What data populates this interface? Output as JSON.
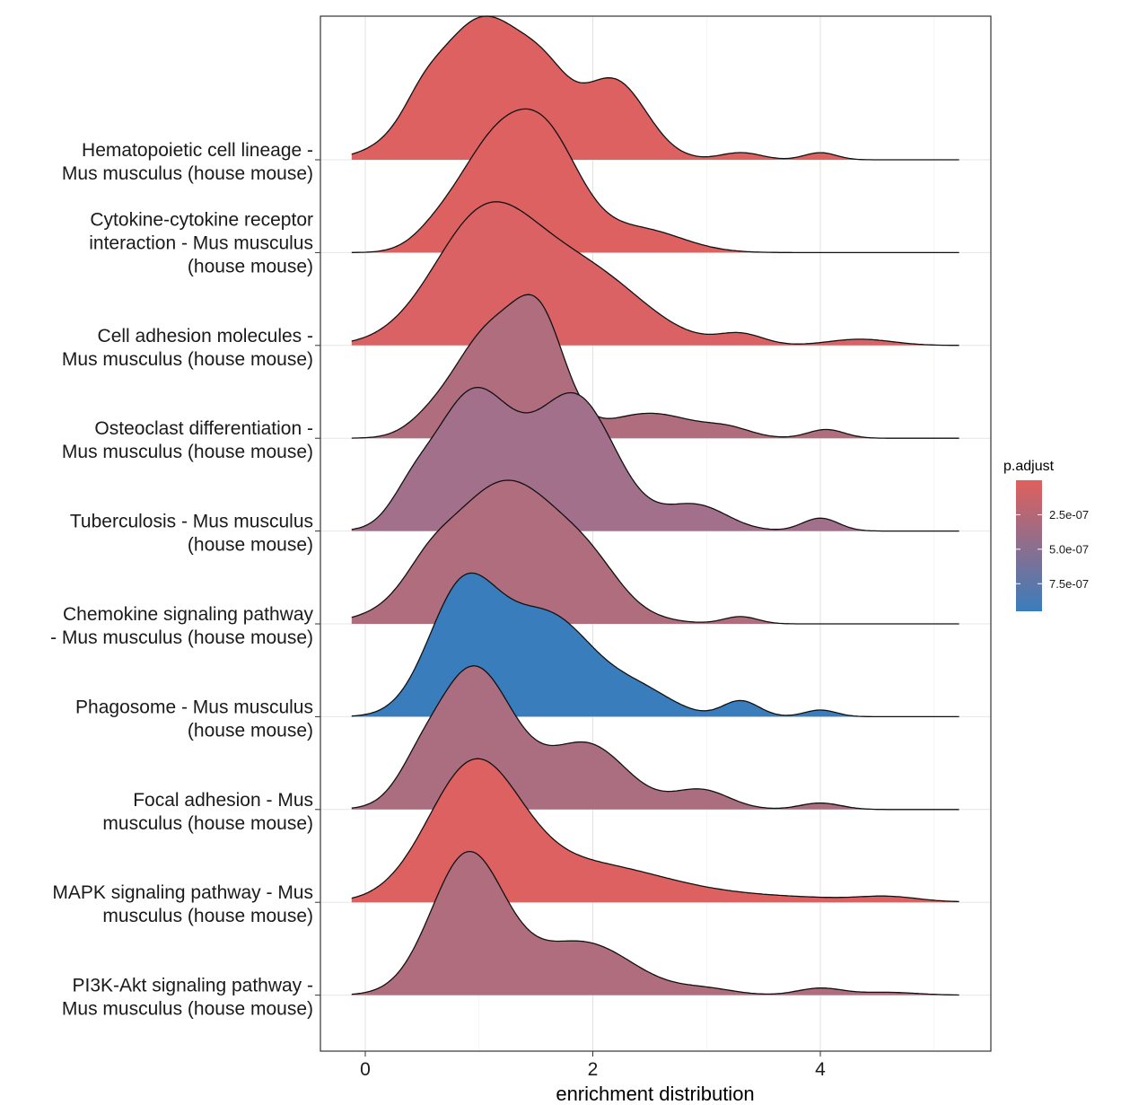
{
  "chart_data": {
    "type": "ridgeline",
    "xlabel": "enrichment distribution",
    "ylabel": "",
    "xlim": [
      -0.4,
      5.4
    ],
    "x_ticks": [
      {
        "value": 0,
        "label": "0"
      },
      {
        "value": 2,
        "label": "2"
      },
      {
        "value": 4,
        "label": "4"
      }
    ],
    "grid": true,
    "legend": {
      "title": "p.adjust",
      "placement": "right",
      "range": [
        0,
        9.5e-07
      ],
      "low_color": "#e0605d",
      "high_color": "#3a7dbd",
      "ticks": [
        {
          "value": 2.5e-07,
          "label": "2.5e-07"
        },
        {
          "value": 5e-07,
          "label": "5.0e-07"
        },
        {
          "value": 7.5e-07,
          "label": "7.5e-07"
        }
      ]
    },
    "density_domain": [
      -0.12,
      5.22
    ],
    "series": [
      {
        "label_lines": [
          "Hematopoietic cell lineage -",
          "Mus musculus (house mouse)"
        ],
        "color": "#dd6161",
        "peaks": [
          [
            1.05,
            0.46,
            1.0
          ],
          [
            2.2,
            0.28,
            0.52
          ],
          [
            1.6,
            0.2,
            0.2
          ],
          [
            3.3,
            0.18,
            0.05
          ],
          [
            4.0,
            0.14,
            0.05
          ],
          [
            0.5,
            0.16,
            0.1
          ]
        ]
      },
      {
        "label_lines": [
          "Cytokine-cytokine receptor",
          "interaction - Mus musculus",
          "(house mouse)"
        ],
        "color": "#dd6161",
        "peaks": [
          [
            1.1,
            0.32,
            0.9
          ],
          [
            1.6,
            0.3,
            0.95
          ],
          [
            2.4,
            0.38,
            0.22
          ],
          [
            0.6,
            0.2,
            0.1
          ]
        ]
      },
      {
        "label_lines": [
          "Cell adhesion molecules -",
          "Mus musculus (house mouse)"
        ],
        "color": "#db6264",
        "peaks": [
          [
            1.05,
            0.45,
            0.82
          ],
          [
            1.95,
            0.5,
            0.45
          ],
          [
            3.3,
            0.2,
            0.07
          ],
          [
            4.35,
            0.28,
            0.04
          ]
        ]
      },
      {
        "label_lines": [
          "Osteoclast differentiation -",
          "Mus musculus (house mouse)"
        ],
        "color": "#b06d7e",
        "peaks": [
          [
            1.1,
            0.32,
            0.85
          ],
          [
            1.55,
            0.22,
            0.75
          ],
          [
            2.5,
            0.4,
            0.2
          ],
          [
            3.2,
            0.2,
            0.06
          ],
          [
            4.05,
            0.16,
            0.07
          ],
          [
            0.55,
            0.2,
            0.08
          ]
        ]
      },
      {
        "label_lines": [
          "Tuberculosis - Mus musculus",
          "(house mouse)"
        ],
        "color": "#a3708b",
        "peaks": [
          [
            0.95,
            0.35,
            0.75
          ],
          [
            1.85,
            0.35,
            0.72
          ],
          [
            2.9,
            0.28,
            0.14
          ],
          [
            4.0,
            0.16,
            0.07
          ],
          [
            0.4,
            0.18,
            0.12
          ]
        ]
      },
      {
        "label_lines": [
          "Chemokine signaling pathway",
          "- Mus musculus (house mouse)"
        ],
        "color": "#b06d7e",
        "peaks": [
          [
            1.25,
            0.55,
            1.0
          ],
          [
            2.0,
            0.25,
            0.15
          ],
          [
            3.3,
            0.15,
            0.05
          ],
          [
            0.55,
            0.2,
            0.12
          ]
        ]
      },
      {
        "label_lines": [
          "Phagosome - Mus musculus",
          "(house mouse)"
        ],
        "color": "#3a7dbd",
        "peaks": [
          [
            0.85,
            0.3,
            0.9
          ],
          [
            1.6,
            0.42,
            0.76
          ],
          [
            2.45,
            0.28,
            0.15
          ],
          [
            3.3,
            0.16,
            0.12
          ],
          [
            4.0,
            0.14,
            0.05
          ]
        ]
      },
      {
        "label_lines": [
          "Focal adhesion - Mus",
          "musculus (house mouse)"
        ],
        "color": "#ab6d80",
        "peaks": [
          [
            0.95,
            0.35,
            0.88
          ],
          [
            1.95,
            0.35,
            0.4
          ],
          [
            2.95,
            0.25,
            0.12
          ],
          [
            4.0,
            0.18,
            0.04
          ],
          [
            0.45,
            0.18,
            0.1
          ]
        ]
      },
      {
        "label_lines": [
          "MAPK signaling pathway - Mus",
          "musculus (house mouse)"
        ],
        "color": "#dd6161",
        "peaks": [
          [
            0.95,
            0.4,
            0.95
          ],
          [
            1.9,
            0.7,
            0.28
          ],
          [
            3.5,
            0.8,
            0.04
          ],
          [
            4.6,
            0.25,
            0.03
          ]
        ]
      },
      {
        "label_lines": [
          "PI3K-Akt signaling pathway -",
          "Mus musculus (house mouse)"
        ],
        "color": "#b06d7e",
        "peaks": [
          [
            0.9,
            0.32,
            1.0
          ],
          [
            1.9,
            0.45,
            0.38
          ],
          [
            3.0,
            0.25,
            0.04
          ],
          [
            4.0,
            0.2,
            0.05
          ],
          [
            4.6,
            0.25,
            0.02
          ]
        ]
      }
    ]
  }
}
